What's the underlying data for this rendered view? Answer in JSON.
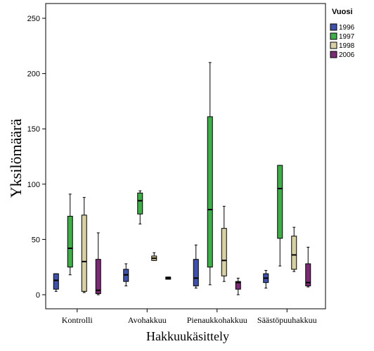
{
  "chart_data": {
    "type": "boxplot",
    "title": "",
    "xlabel": "Hakkuukäsittely",
    "ylabel": "Yksilömäärä",
    "ylim": [
      0,
      260
    ],
    "yticks": [
      0,
      50,
      100,
      150,
      200,
      250
    ],
    "categories": [
      "Kontrolli",
      "Avohakkuu",
      "Pienaukkohakkuu",
      "Säästöpuuhakkuu"
    ],
    "legend": {
      "title": "Vuosi",
      "position": "right"
    },
    "series": [
      {
        "name": "1996",
        "color": "#3f51a8",
        "boxes": [
          {
            "min": 3,
            "q1": 5,
            "median": 13,
            "q3": 19,
            "max": 19
          },
          {
            "min": 8,
            "q1": 12,
            "median": 18,
            "q3": 23,
            "max": 28
          },
          {
            "min": 6,
            "q1": 8,
            "median": 15,
            "q3": 32,
            "max": 45
          },
          {
            "min": 6,
            "q1": 11,
            "median": 15,
            "q3": 19,
            "max": 22
          }
        ]
      },
      {
        "name": "1997",
        "color": "#3fae49",
        "boxes": [
          {
            "min": 18,
            "q1": 25,
            "median": 42,
            "q3": 71,
            "max": 91
          },
          {
            "min": 64,
            "q1": 73,
            "median": 85,
            "q3": 92,
            "max": 94
          },
          {
            "min": 9,
            "q1": 25,
            "median": 77,
            "q3": 161,
            "max": 210
          },
          {
            "min": 26,
            "q1": 51,
            "median": 96,
            "q3": 117,
            "max": 117
          }
        ]
      },
      {
        "name": "1998",
        "color": "#d7d0a4",
        "boxes": [
          {
            "min": 2,
            "q1": 3,
            "median": 30,
            "q3": 72,
            "max": 88
          },
          {
            "min": 31,
            "q1": 31,
            "median": 33,
            "q3": 35,
            "max": 38
          },
          {
            "min": 12,
            "q1": 17,
            "median": 31,
            "q3": 60,
            "max": 80
          },
          {
            "min": 21,
            "q1": 23,
            "median": 36,
            "q3": 53,
            "max": 61
          }
        ]
      },
      {
        "name": "2006",
        "color": "#7b2a73",
        "boxes": [
          {
            "min": 0,
            "q1": 1,
            "median": 4,
            "q3": 32,
            "max": 56
          },
          {
            "min": 14,
            "q1": 14,
            "median": 15,
            "q3": 16,
            "max": 16
          },
          {
            "min": 0,
            "q1": 5,
            "median": 11,
            "q3": 12,
            "max": 15
          },
          {
            "min": 7,
            "q1": 8,
            "median": 11,
            "q3": 28,
            "max": 43
          }
        ]
      }
    ]
  }
}
